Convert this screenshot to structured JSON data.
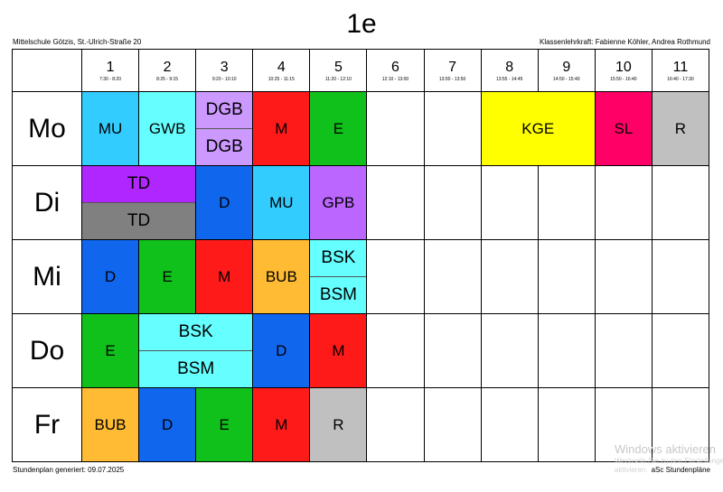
{
  "title": "1e",
  "school": "Mittelschule Götzis, St.-Ulrich-Straße 20",
  "teachers": "Klassenlehrkraft: Fabienne Köhler, Andrea Rothmund",
  "footer": {
    "generated": "Stundenplan generiert: 09.07.2025",
    "brand": "aSc Stundenpläne"
  },
  "watermark": {
    "line1": "Windows aktivieren",
    "line2": "Wechseln Sie zu den Einstellungen, um Windows zu",
    "line3": "aktivieren."
  },
  "periods": [
    {
      "num": "1",
      "time": "7:30 - 8:20"
    },
    {
      "num": "2",
      "time": "8:25 - 9:15"
    },
    {
      "num": "3",
      "time": "9:20 - 10:10"
    },
    {
      "num": "4",
      "time": "10:25 - 11:15"
    },
    {
      "num": "5",
      "time": "11:20 - 12:10"
    },
    {
      "num": "6",
      "time": "12:10 - 13:00"
    },
    {
      "num": "7",
      "time": "13:00 - 13:50"
    },
    {
      "num": "8",
      "time": "13:55 - 14:45"
    },
    {
      "num": "9",
      "time": "14:50 - 15:40"
    },
    {
      "num": "10",
      "time": "15:50 - 16:40"
    },
    {
      "num": "11",
      "time": "16:40 - 17:30"
    }
  ],
  "days": [
    "Mo",
    "Di",
    "Mi",
    "Do",
    "Fr"
  ],
  "colors": {
    "MU": "#33ccff",
    "GWB": "#66ffff",
    "DGB": "#cc99ff",
    "M": "#ff1a1a",
    "E": "#11c11b",
    "KGE": "#ffff00",
    "SL": "#ff0066",
    "R": "#c0c0c0",
    "TD_a": "#b026ff",
    "TD_b": "#808080",
    "D": "#1166ee",
    "GPB": "#bb66ff",
    "BUB": "#ffbb33",
    "BSK": "#66ffff",
    "BSM": "#66ffff"
  },
  "lessons": [
    {
      "day": 0,
      "start": 1,
      "span": 1,
      "labels": [
        "MU"
      ],
      "colors": [
        "#33ccff"
      ]
    },
    {
      "day": 0,
      "start": 2,
      "span": 1,
      "labels": [
        "GWB"
      ],
      "colors": [
        "#66ffff"
      ]
    },
    {
      "day": 0,
      "start": 3,
      "span": 1,
      "labels": [
        "DGB",
        "DGB"
      ],
      "colors": [
        "#cc99ff",
        "#cc99ff"
      ]
    },
    {
      "day": 0,
      "start": 4,
      "span": 1,
      "labels": [
        "M"
      ],
      "colors": [
        "#ff1a1a"
      ]
    },
    {
      "day": 0,
      "start": 5,
      "span": 1,
      "labels": [
        "E"
      ],
      "colors": [
        "#11c11b"
      ]
    },
    {
      "day": 0,
      "start": 8,
      "span": 2,
      "labels": [
        "KGE"
      ],
      "colors": [
        "#ffff00"
      ]
    },
    {
      "day": 0,
      "start": 10,
      "span": 1,
      "labels": [
        "SL"
      ],
      "colors": [
        "#ff0066"
      ]
    },
    {
      "day": 0,
      "start": 11,
      "span": 1,
      "labels": [
        "R"
      ],
      "colors": [
        "#c0c0c0"
      ]
    },
    {
      "day": 1,
      "start": 1,
      "span": 2,
      "labels": [
        "TD",
        "TD"
      ],
      "colors": [
        "#b026ff",
        "#808080"
      ]
    },
    {
      "day": 1,
      "start": 3,
      "span": 1,
      "labels": [
        "D"
      ],
      "colors": [
        "#1166ee"
      ]
    },
    {
      "day": 1,
      "start": 4,
      "span": 1,
      "labels": [
        "MU"
      ],
      "colors": [
        "#33ccff"
      ]
    },
    {
      "day": 1,
      "start": 5,
      "span": 1,
      "labels": [
        "GPB"
      ],
      "colors": [
        "#bb66ff"
      ]
    },
    {
      "day": 2,
      "start": 1,
      "span": 1,
      "labels": [
        "D"
      ],
      "colors": [
        "#1166ee"
      ]
    },
    {
      "day": 2,
      "start": 2,
      "span": 1,
      "labels": [
        "E"
      ],
      "colors": [
        "#11c11b"
      ]
    },
    {
      "day": 2,
      "start": 3,
      "span": 1,
      "labels": [
        "M"
      ],
      "colors": [
        "#ff1a1a"
      ]
    },
    {
      "day": 2,
      "start": 4,
      "span": 1,
      "labels": [
        "BUB"
      ],
      "colors": [
        "#ffbb33"
      ]
    },
    {
      "day": 2,
      "start": 5,
      "span": 1,
      "labels": [
        "BSK",
        "BSM"
      ],
      "colors": [
        "#66ffff",
        "#66ffff"
      ]
    },
    {
      "day": 3,
      "start": 1,
      "span": 1,
      "labels": [
        "E"
      ],
      "colors": [
        "#11c11b"
      ]
    },
    {
      "day": 3,
      "start": 2,
      "span": 2,
      "labels": [
        "BSK",
        "BSM"
      ],
      "colors": [
        "#66ffff",
        "#66ffff"
      ]
    },
    {
      "day": 3,
      "start": 4,
      "span": 1,
      "labels": [
        "D"
      ],
      "colors": [
        "#1166ee"
      ]
    },
    {
      "day": 3,
      "start": 5,
      "span": 1,
      "labels": [
        "M"
      ],
      "colors": [
        "#ff1a1a"
      ]
    },
    {
      "day": 4,
      "start": 1,
      "span": 1,
      "labels": [
        "BUB"
      ],
      "colors": [
        "#ffbb33"
      ]
    },
    {
      "day": 4,
      "start": 2,
      "span": 1,
      "labels": [
        "D"
      ],
      "colors": [
        "#1166ee"
      ]
    },
    {
      "day": 4,
      "start": 3,
      "span": 1,
      "labels": [
        "E"
      ],
      "colors": [
        "#11c11b"
      ]
    },
    {
      "day": 4,
      "start": 4,
      "span": 1,
      "labels": [
        "M"
      ],
      "colors": [
        "#ff1a1a"
      ]
    },
    {
      "day": 4,
      "start": 5,
      "span": 1,
      "labels": [
        "R"
      ],
      "colors": [
        "#c0c0c0"
      ]
    }
  ]
}
